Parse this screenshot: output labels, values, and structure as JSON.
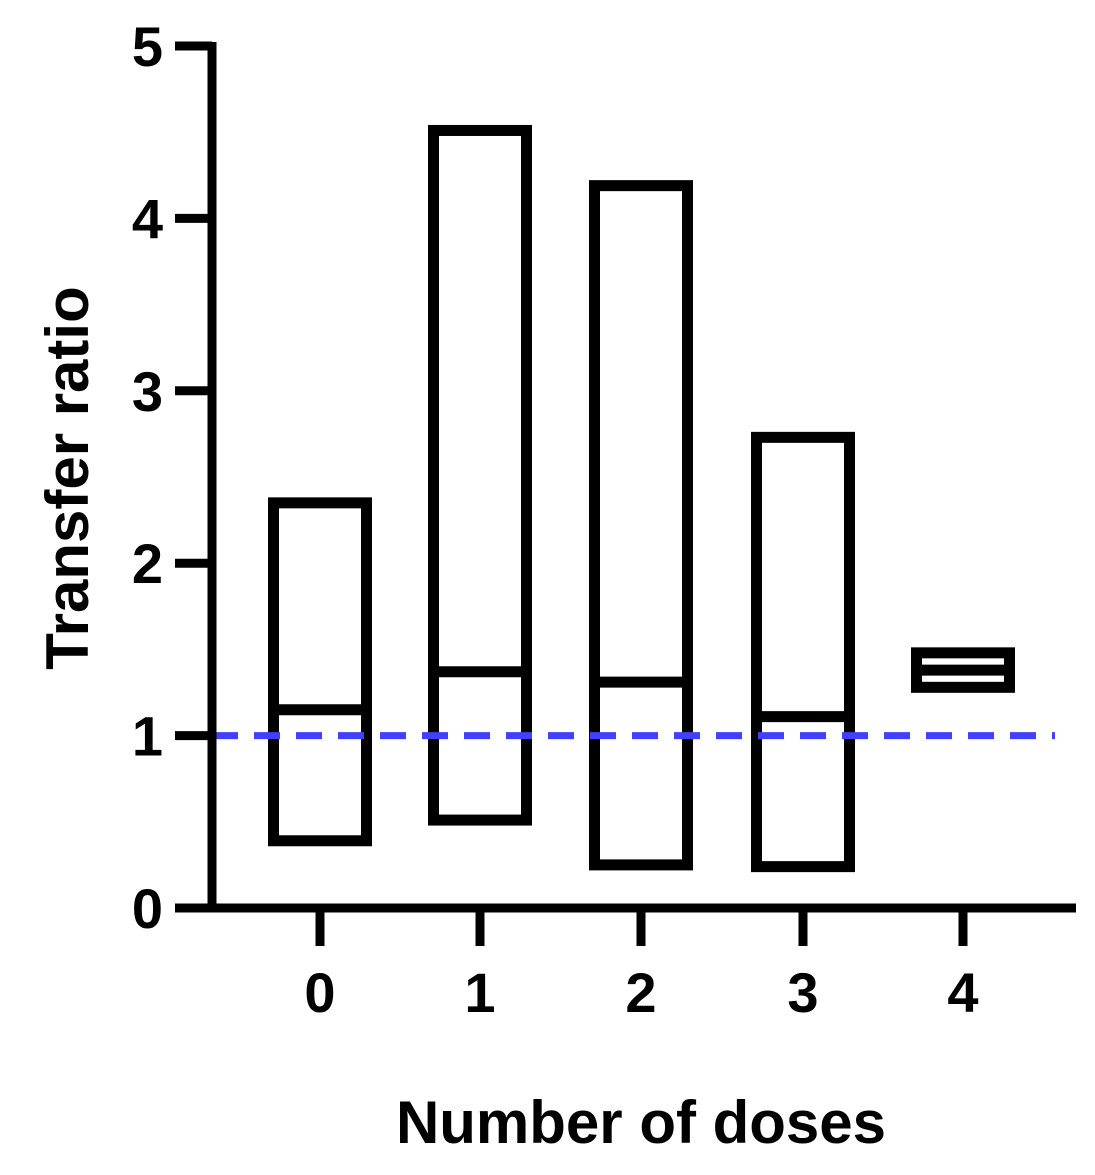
{
  "chart_data": {
    "type": "bar",
    "subtype": "floating-bar-min-max-with-median",
    "xlabel": "Number of doses",
    "ylabel": "Transfer ratio",
    "categories": [
      "0",
      "1",
      "2",
      "3",
      "4"
    ],
    "series": [
      {
        "min": [
          0.39,
          0.51,
          0.25,
          0.24,
          1.28
        ],
        "median": [
          1.15,
          1.37,
          1.31,
          1.11,
          1.38
        ],
        "max": [
          2.35,
          4.51,
          4.19,
          2.73,
          1.48
        ]
      }
    ],
    "ylim": [
      0,
      5
    ],
    "yticks": [
      "0",
      "1",
      "2",
      "3",
      "4",
      "5"
    ],
    "reference_line": {
      "y": 1,
      "style": "dashed",
      "color": "#4040ff"
    },
    "bar_color": "#000000",
    "grid": false,
    "legend": "none"
  }
}
